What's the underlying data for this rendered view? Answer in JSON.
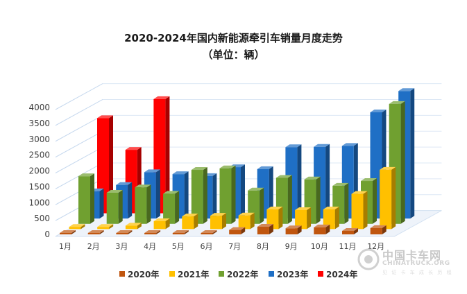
{
  "chart_data": {
    "type": "bar",
    "title": "2020-2024年国内新能源牵引车销量月度走势",
    "subtitle": "（单位：辆）",
    "categories": [
      "1月",
      "2月",
      "3月",
      "4月",
      "5月",
      "6月",
      "7月",
      "8月",
      "9月",
      "10月",
      "11月",
      "12月"
    ],
    "yticks": [
      "0",
      "500",
      "1000",
      "1500",
      "2000",
      "2500",
      "3000",
      "3500",
      "4000"
    ],
    "ylim": [
      0,
      4000
    ],
    "grid": true,
    "legend_position": "bottom",
    "series": [
      {
        "name": "2020年",
        "color": "#c0560f",
        "values": [
          40,
          40,
          40,
          40,
          40,
          30,
          140,
          240,
          190,
          220,
          110,
          200
        ]
      },
      {
        "name": "2021年",
        "color": "#ffc000",
        "values": [
          70,
          70,
          110,
          250,
          400,
          420,
          430,
          620,
          600,
          620,
          1110,
          1870
        ]
      },
      {
        "name": "2022年",
        "color": "#70a030",
        "values": [
          1500,
          980,
          1150,
          950,
          1700,
          1750,
          1050,
          1450,
          1400,
          1200,
          1350,
          3780
        ]
      },
      {
        "name": "2023年",
        "color": "#1f6fc5",
        "values": [
          860,
          1060,
          1460,
          1400,
          1340,
          1620,
          1560,
          2250,
          2260,
          2290,
          3350,
          4020
        ]
      },
      {
        "name": "2024年",
        "color": "#ff0000",
        "values": [
          3000,
          2000,
          3600,
          null,
          null,
          null,
          null,
          null,
          null,
          null,
          null,
          null
        ]
      }
    ]
  },
  "watermark": {
    "cn": "中国卡车网",
    "en": "CHINATRUCK.ORG",
    "sub": "见 证 卡 车 成 长 历 程"
  }
}
